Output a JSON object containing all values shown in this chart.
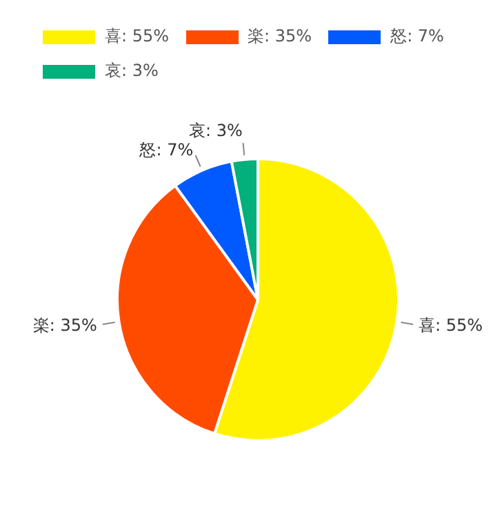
{
  "chart_data": {
    "type": "pie",
    "categories": [
      "喜",
      "楽",
      "怒",
      "哀"
    ],
    "values": [
      55,
      35,
      7,
      3
    ],
    "value_labels": [
      "55%",
      "35%",
      "7%",
      "3%"
    ],
    "colors": [
      "#fff200",
      "#ff4b00",
      "#005aff",
      "#03af7a"
    ],
    "legend": "top left"
  }
}
